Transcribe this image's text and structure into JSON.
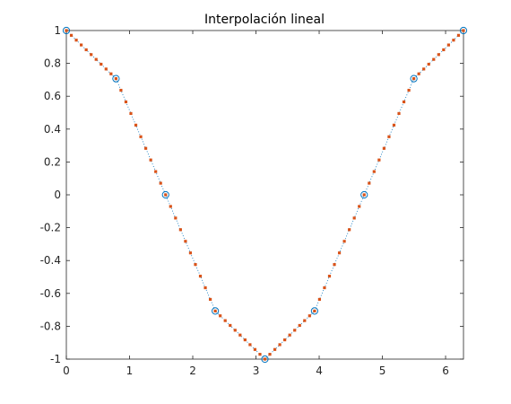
{
  "chart_data": {
    "type": "line",
    "title": "Interpolación lineal",
    "xlabel": "",
    "ylabel": "",
    "xlim": [
      0,
      6.2832
    ],
    "ylim": [
      -1,
      1
    ],
    "x_ticks": [
      0,
      1,
      2,
      3,
      4,
      5,
      6
    ],
    "x_tick_labels": [
      "0",
      "1",
      "2",
      "3",
      "4",
      "5",
      "6"
    ],
    "y_ticks": [
      1,
      0.8,
      0.6,
      0.4,
      0.2,
      0,
      -0.2,
      -0.4,
      -0.6,
      -0.8,
      -1
    ],
    "y_tick_labels": [
      "1",
      "0.8",
      "0.6",
      "0.4",
      "0.2",
      "0",
      "-0.2",
      "-0.4",
      "-0.6",
      "-0.8",
      "-1"
    ],
    "grid": false,
    "colors": {
      "markers": "#0072bd",
      "interpolated": "#d95319",
      "axes": "#262626"
    },
    "series": [
      {
        "style": "circle-markers",
        "x": [
          0,
          0.7854,
          1.5708,
          2.3562,
          3.1416,
          3.927,
          4.7124,
          5.4978,
          6.2832
        ],
        "values": [
          1,
          0.7071,
          0,
          -0.7071,
          -1,
          -0.7071,
          0,
          0.7071,
          1
        ]
      },
      {
        "style": "dotted-line-with-point-markers",
        "x_start": 0,
        "x_end": 6.2832,
        "count": 81,
        "interpolation": "linear-through-circle-markers"
      }
    ]
  }
}
